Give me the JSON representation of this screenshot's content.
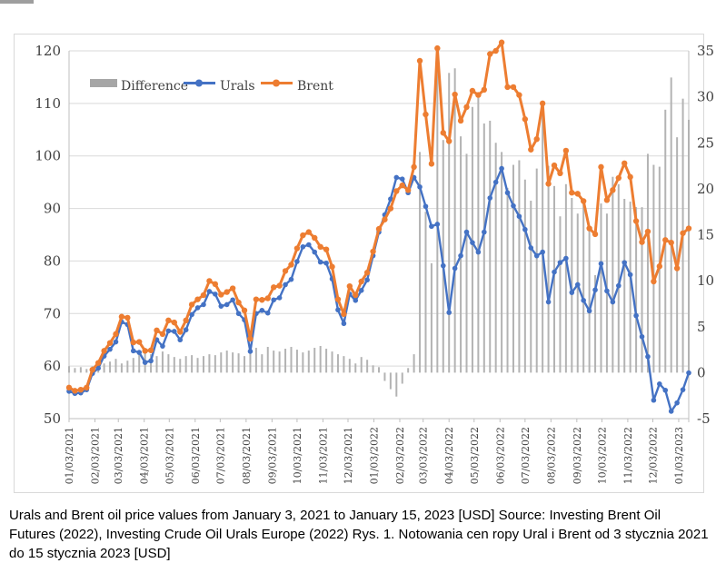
{
  "caption": "Urals and Brent oil price values from January 3, 2021 to January 15, 2023 [USD] Source: Investing Brent Oil Futures (2022), Investing Crude Oil Urals Europe (2022) Rys. 1. Notowania cen ropy Ural i Brent od 3 stycznia 2021 do 15 stycznia 2023 [USD]",
  "chart_data": {
    "type": "line+bar combo",
    "title": "",
    "legend": [
      {
        "label": "Difference",
        "type": "bar",
        "color": "#a6a6a6"
      },
      {
        "label": "Urals",
        "type": "line",
        "color": "#4472c4"
      },
      {
        "label": "Brent",
        "type": "line",
        "color": "#ed7d31"
      }
    ],
    "left_axis": {
      "min": 50,
      "max": 120,
      "step": 10,
      "tick_labels": [
        "50",
        "60",
        "70",
        "80",
        "90",
        "100",
        "110",
        "120"
      ]
    },
    "right_axis": {
      "min": -5,
      "max": 35,
      "step": 5,
      "tick_labels": [
        "-5",
        "0",
        "5",
        "10",
        "15",
        "20",
        "25",
        "30",
        "35"
      ]
    },
    "x_tick_labels": [
      "01/03/2021",
      "02/03/2021",
      "03/03/2021",
      "04/03/2021",
      "05/03/2021",
      "06/03/2021",
      "07/03/2021",
      "08/03/2021",
      "09/03/2021",
      "10/03/2021",
      "11/03/2021",
      "12/03/2021",
      "01/03/2022",
      "02/03/2022",
      "03/03/2022",
      "04/03/2022",
      "05/03/2022",
      "06/03/2022",
      "07/03/2022",
      "08/03/2022",
      "09/03/2022",
      "10/03/2022",
      "11/03/2022",
      "12/03/2022",
      "01/03/2023"
    ],
    "grid": true,
    "legend_position": "top-inside",
    "n_points": 107,
    "point_interval": "weekly",
    "series": [
      {
        "name": "Urals",
        "axis": "left",
        "color": "#4472c4",
        "values": [
          55.2,
          54.8,
          54.9,
          55.5,
          58.6,
          59.6,
          61.9,
          63.2,
          64.6,
          68.4,
          67.9,
          62.9,
          62.6,
          60.7,
          61.0,
          65.0,
          63.8,
          66.7,
          66.6,
          65.0,
          66.9,
          69.8,
          71.1,
          71.7,
          74.2,
          73.7,
          71.4,
          71.7,
          72.6,
          70.0,
          68.8,
          62.8,
          70.0,
          70.6,
          70.1,
          72.6,
          73.0,
          75.5,
          76.5,
          79.9,
          82.7,
          83.1,
          81.7,
          79.8,
          79.6,
          76.6,
          70.7,
          68.1,
          73.7,
          72.5,
          74.4,
          76.4,
          81.0,
          85.5,
          88.8,
          91.8,
          95.9,
          95.6,
          93.0,
          95.9,
          94.1,
          90.4,
          86.6,
          87.0,
          79.1,
          70.2,
          78.6,
          81.0,
          85.5,
          83.5,
          81.7,
          85.5,
          92.0,
          95.0,
          97.6,
          93.0,
          90.5,
          88.5,
          86.0,
          82.5,
          81.0,
          81.7,
          72.2,
          77.9,
          79.7,
          80.5,
          74.0,
          75.5,
          72.5,
          70.5,
          74.5,
          79.5,
          74.3,
          72.2,
          75.3,
          79.7,
          77.4,
          69.6,
          65.6,
          61.8,
          53.5,
          56.6,
          55.4,
          51.4,
          53.0,
          55.5,
          58.7
        ]
      },
      {
        "name": "Brent",
        "axis": "left",
        "color": "#ed7d31",
        "values": [
          55.9,
          55.3,
          55.5,
          55.9,
          59.3,
          60.6,
          62.9,
          64.4,
          66.1,
          69.4,
          69.2,
          64.5,
          64.6,
          62.9,
          63.0,
          66.8,
          66.1,
          68.7,
          68.3,
          66.5,
          68.7,
          71.7,
          72.7,
          73.5,
          76.2,
          75.6,
          73.6,
          74.1,
          74.8,
          72.1,
          70.6,
          65.2,
          72.7,
          72.6,
          72.9,
          75.0,
          75.3,
          78.1,
          79.3,
          82.4,
          84.9,
          85.5,
          84.4,
          82.7,
          82.2,
          78.9,
          72.7,
          69.9,
          75.2,
          73.5,
          76.1,
          77.8,
          81.8,
          86.1,
          87.9,
          90.0,
          93.3,
          94.4,
          93.5,
          97.9,
          118.1,
          107.9,
          98.5,
          120.5,
          104.4,
          102.8,
          111.7,
          106.7,
          109.3,
          112.4,
          111.6,
          112.6,
          119.4,
          120.0,
          121.6,
          113.1,
          113.1,
          111.6,
          107.0,
          101.2,
          103.2,
          110.0,
          94.7,
          98.2,
          96.7,
          101.0,
          93.0,
          92.8,
          91.4,
          86.2,
          85.1,
          97.9,
          91.6,
          93.5,
          95.8,
          98.6,
          96.0,
          87.6,
          83.6,
          85.6,
          76.1,
          79.0,
          84.0,
          83.5,
          78.6,
          85.3,
          86.2
        ]
      },
      {
        "name": "Difference",
        "axis": "right",
        "color": "#b3b3b3",
        "derived": "Brent minus Urals"
      }
    ]
  }
}
